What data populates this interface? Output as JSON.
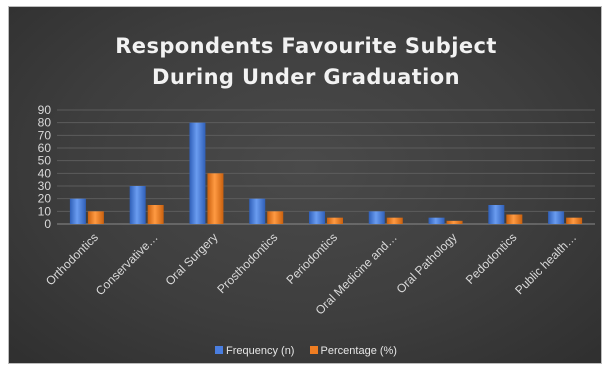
{
  "chart_data": {
    "type": "bar",
    "title_lines": [
      "Respondents Favourite Subject",
      "During Under Graduation"
    ],
    "categories": [
      "Orthodontics",
      "Conservative…",
      "Oral Surgery",
      "Prosthodontics",
      "Periodontics",
      "Oral Medicine and…",
      "Oral Pathology",
      "Pedodontics",
      "Public health…"
    ],
    "series": [
      {
        "name": "Frequency (n)",
        "values": [
          20,
          30,
          80,
          20,
          10,
          10,
          5,
          15,
          10
        ],
        "color": "#4a7ee0"
      },
      {
        "name": "Percentage (%)",
        "values": [
          10,
          15,
          40,
          10,
          5,
          5,
          2.5,
          7.5,
          5
        ],
        "color": "#ef7d22"
      }
    ],
    "ylim": [
      0,
      90
    ],
    "yticks": [
      0,
      10,
      20,
      30,
      40,
      50,
      60,
      70,
      80,
      90
    ],
    "grid": true,
    "legend_position": "bottom"
  }
}
